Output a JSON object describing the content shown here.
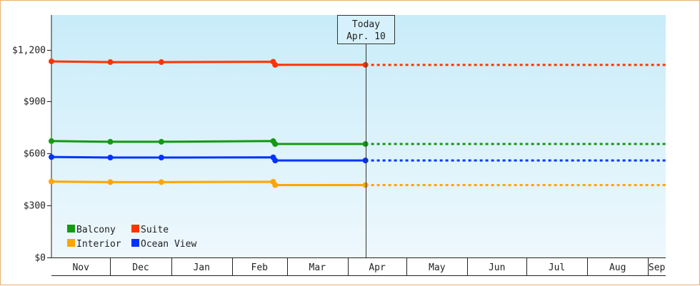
{
  "chart_data": {
    "type": "line",
    "title": "",
    "xlabel": "",
    "ylabel": "",
    "y_ticks": [
      "$0",
      "$300",
      "$600",
      "$900",
      "$1,200"
    ],
    "y_tick_values": [
      0,
      300,
      600,
      900,
      1200
    ],
    "ylim": [
      0,
      1400
    ],
    "x_months": [
      "Nov",
      "Dec",
      "Jan",
      "Feb",
      "Mar",
      "Apr",
      "May",
      "Jun",
      "Jul",
      "Aug",
      "Sep"
    ],
    "x_start": "Nov 1",
    "x_end": "Sep 10",
    "today": {
      "label": "Today",
      "date": "Apr. 10"
    },
    "grid": false,
    "legend_placement": "bottom-left",
    "series": [
      {
        "name": "Balcony",
        "color": "#139a13",
        "points": [
          [
            "Nov 1",
            672
          ],
          [
            "Dec 1",
            668
          ],
          [
            "Dec 27",
            668
          ],
          [
            "Feb 22",
            672
          ],
          [
            "Feb 23",
            655
          ],
          [
            "Apr 10",
            655
          ]
        ],
        "forecast_end": [
          "Sep 10",
          655
        ]
      },
      {
        "name": "Suite",
        "color": "#ff3300",
        "points": [
          [
            "Nov 1",
            1132
          ],
          [
            "Dec 1",
            1128
          ],
          [
            "Dec 27",
            1128
          ],
          [
            "Feb 22",
            1130
          ],
          [
            "Feb 23",
            1112
          ],
          [
            "Apr 10",
            1112
          ]
        ],
        "forecast_end": [
          "Sep 10",
          1112
        ]
      },
      {
        "name": "Interior",
        "color": "#ffa500",
        "points": [
          [
            "Nov 1",
            438
          ],
          [
            "Dec 1",
            435
          ],
          [
            "Dec 27",
            435
          ],
          [
            "Feb 22",
            437
          ],
          [
            "Feb 23",
            418
          ],
          [
            "Apr 10",
            418
          ]
        ],
        "forecast_end": [
          "Sep 10",
          418
        ]
      },
      {
        "name": "Ocean View",
        "color": "#0033ff",
        "points": [
          [
            "Nov 1",
            580
          ],
          [
            "Dec 1",
            577
          ],
          [
            "Dec 27",
            577
          ],
          [
            "Feb 22",
            578
          ],
          [
            "Feb 23",
            560
          ],
          [
            "Apr 10",
            560
          ]
        ],
        "forecast_end": [
          "Sep 10",
          560
        ]
      }
    ]
  }
}
